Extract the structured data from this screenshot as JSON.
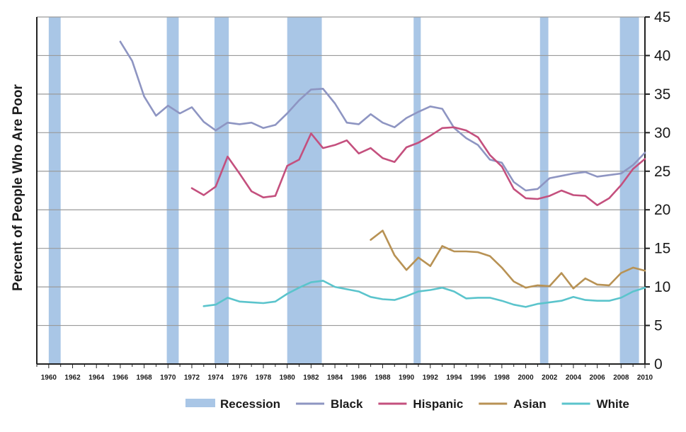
{
  "chart_data": {
    "type": "line",
    "title": "",
    "xlabel": "",
    "ylabel": "Percent of People Who Are Poor",
    "xlim": [
      1959,
      2010
    ],
    "ylim": [
      0,
      45
    ],
    "y_ticks": [
      "0",
      "5",
      "10",
      "15",
      "20",
      "25",
      "30",
      "35",
      "40",
      "45"
    ],
    "x_ticks": [
      "1960",
      "1962",
      "1964",
      "1966",
      "1968",
      "1970",
      "1972",
      "1974",
      "1976",
      "1978",
      "1980",
      "1982",
      "1984",
      "1986",
      "1988",
      "1990",
      "1992",
      "1994",
      "1996",
      "1998",
      "2000",
      "2002",
      "2004",
      "2006",
      "2008",
      "2010"
    ],
    "grid": true,
    "y_axis_side": "right",
    "legend_position": "bottom",
    "recessions": [
      {
        "start": 1960.0,
        "end": 1961.0
      },
      {
        "start": 1969.9,
        "end": 1970.9
      },
      {
        "start": 1973.9,
        "end": 1975.1
      },
      {
        "start": 1980.0,
        "end": 1982.9
      },
      {
        "start": 1990.6,
        "end": 1991.2
      },
      {
        "start": 2001.2,
        "end": 2001.9
      },
      {
        "start": 2007.9,
        "end": 2009.5
      }
    ],
    "legend": [
      {
        "name": "Recession",
        "color": "#a9c6e6",
        "kind": "bar"
      },
      {
        "name": "Black",
        "color": "#8e95c2",
        "kind": "line"
      },
      {
        "name": "Hispanic",
        "color": "#c4507e",
        "kind": "line"
      },
      {
        "name": "Asian",
        "color": "#b89254",
        "kind": "line"
      },
      {
        "name": "White",
        "color": "#5bc4cc",
        "kind": "line"
      }
    ],
    "series": [
      {
        "name": "Black",
        "color": "#8e95c2",
        "x": [
          1966,
          1967,
          1968,
          1969,
          1970,
          1971,
          1972,
          1973,
          1974,
          1975,
          1976,
          1977,
          1978,
          1979,
          1980,
          1981,
          1982,
          1983,
          1984,
          1985,
          1986,
          1987,
          1988,
          1989,
          1990,
          1991,
          1992,
          1993,
          1994,
          1995,
          1996,
          1997,
          1998,
          1999,
          2000,
          2001,
          2002,
          2003,
          2004,
          2005,
          2006,
          2007,
          2008,
          2009,
          2010
        ],
        "values": [
          41.8,
          39.3,
          34.7,
          32.2,
          33.5,
          32.5,
          33.3,
          31.4,
          30.3,
          31.3,
          31.1,
          31.3,
          30.6,
          31.0,
          32.5,
          34.2,
          35.6,
          35.7,
          33.8,
          31.3,
          31.1,
          32.4,
          31.3,
          30.7,
          31.9,
          32.7,
          33.4,
          33.1,
          30.6,
          29.3,
          28.4,
          26.5,
          26.1,
          23.6,
          22.5,
          22.7,
          24.1,
          24.4,
          24.7,
          24.9,
          24.3,
          24.5,
          24.7,
          25.8,
          27.4
        ]
      },
      {
        "name": "Hispanic",
        "color": "#c4507e",
        "x": [
          1972,
          1973,
          1974,
          1975,
          1976,
          1977,
          1978,
          1979,
          1980,
          1981,
          1982,
          1983,
          1984,
          1985,
          1986,
          1987,
          1988,
          1989,
          1990,
          1991,
          1992,
          1993,
          1994,
          1995,
          1996,
          1997,
          1998,
          1999,
          2000,
          2001,
          2002,
          2003,
          2004,
          2005,
          2006,
          2007,
          2008,
          2009,
          2010
        ],
        "values": [
          22.8,
          21.9,
          23.0,
          26.9,
          24.7,
          22.4,
          21.6,
          21.8,
          25.7,
          26.5,
          29.9,
          28.0,
          28.4,
          29.0,
          27.3,
          28.0,
          26.7,
          26.2,
          28.1,
          28.7,
          29.6,
          30.6,
          30.7,
          30.3,
          29.4,
          27.1,
          25.6,
          22.7,
          21.5,
          21.4,
          21.8,
          22.5,
          21.9,
          21.8,
          20.6,
          21.5,
          23.2,
          25.3,
          26.6
        ]
      },
      {
        "name": "Asian",
        "color": "#b89254",
        "x": [
          1987,
          1988,
          1989,
          1990,
          1991,
          1992,
          1993,
          1994,
          1995,
          1996,
          1997,
          1998,
          1999,
          2000,
          2001,
          2002,
          2003,
          2004,
          2005,
          2006,
          2007,
          2008,
          2009,
          2010
        ],
        "values": [
          16.1,
          17.3,
          14.1,
          12.2,
          13.8,
          12.7,
          15.3,
          14.6,
          14.6,
          14.5,
          14.0,
          12.5,
          10.7,
          9.9,
          10.2,
          10.1,
          11.8,
          9.8,
          11.1,
          10.3,
          10.2,
          11.8,
          12.5,
          12.1
        ]
      },
      {
        "name": "White",
        "color": "#5bc4cc",
        "x": [
          1973,
          1974,
          1975,
          1976,
          1977,
          1978,
          1979,
          1980,
          1981,
          1982,
          1983,
          1984,
          1985,
          1986,
          1987,
          1988,
          1989,
          1990,
          1991,
          1992,
          1993,
          1994,
          1995,
          1996,
          1997,
          1998,
          1999,
          2000,
          2001,
          2002,
          2003,
          2004,
          2005,
          2006,
          2007,
          2008,
          2009,
          2010
        ],
        "values": [
          7.5,
          7.7,
          8.6,
          8.1,
          8.0,
          7.9,
          8.1,
          9.1,
          9.9,
          10.6,
          10.8,
          10.0,
          9.7,
          9.4,
          8.7,
          8.4,
          8.3,
          8.8,
          9.4,
          9.6,
          9.9,
          9.4,
          8.5,
          8.6,
          8.6,
          8.2,
          7.7,
          7.4,
          7.8,
          8.0,
          8.2,
          8.7,
          8.3,
          8.2,
          8.2,
          8.6,
          9.4,
          9.9
        ]
      }
    ]
  }
}
